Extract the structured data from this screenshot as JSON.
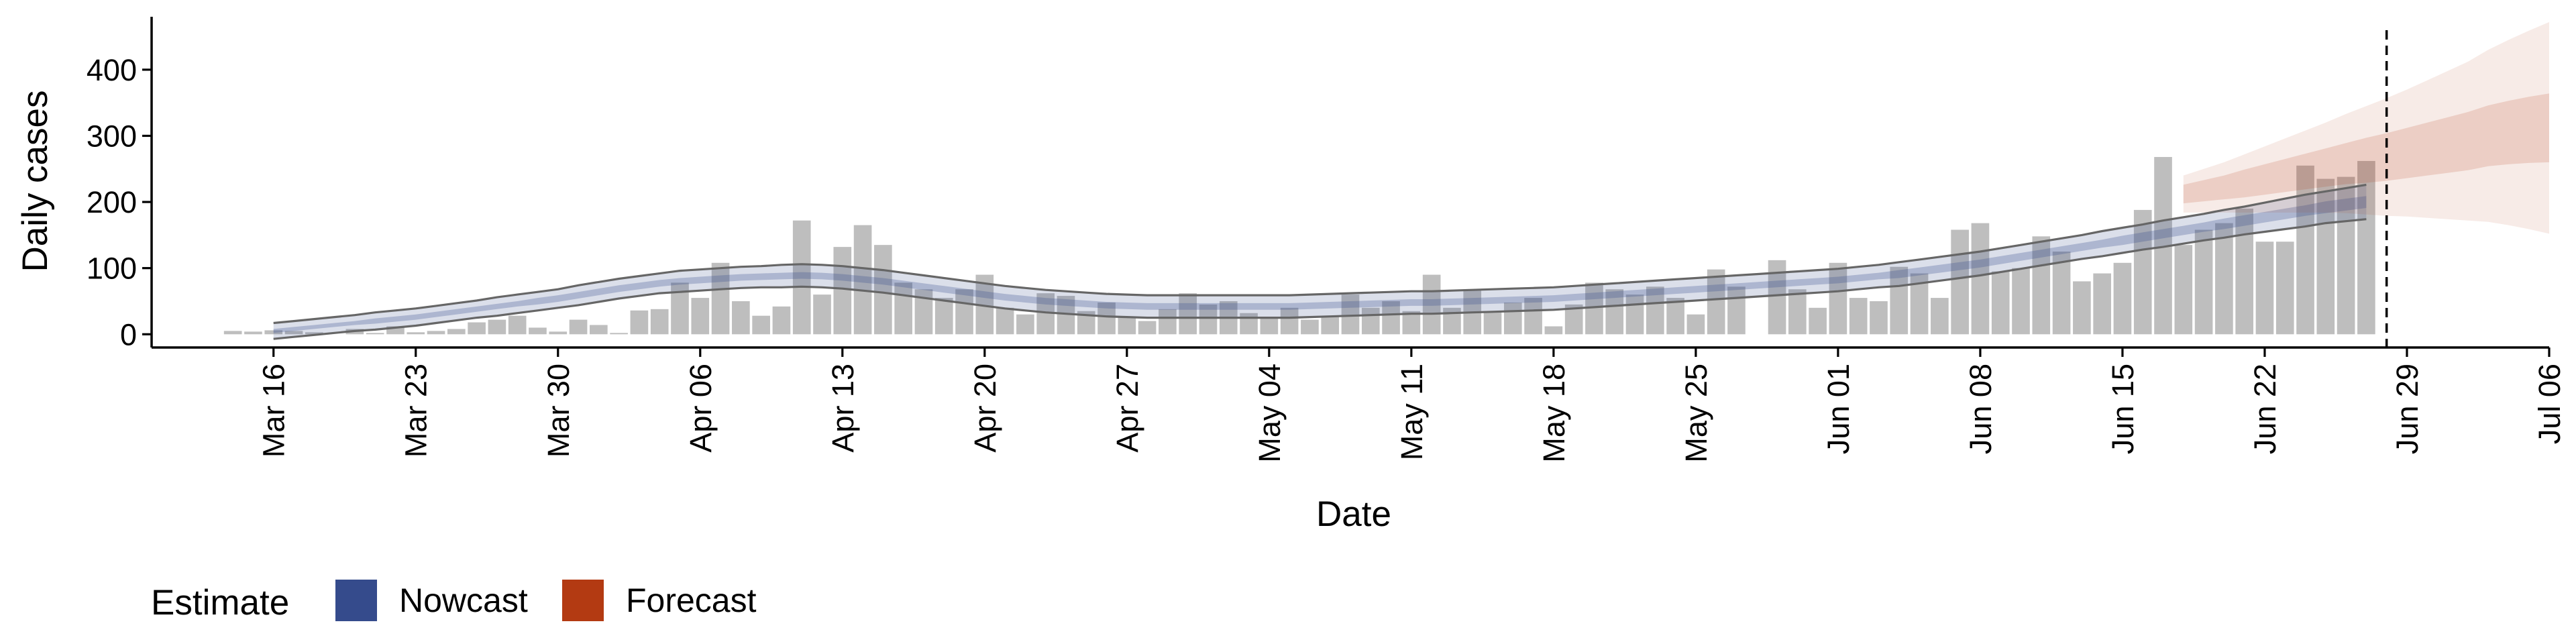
{
  "chart_data": {
    "type": "bar",
    "xlabel": "Date",
    "ylabel": "Daily cases",
    "x_start_date": "2020-03-14",
    "xlim": [
      "2020-03-10",
      "2020-07-06"
    ],
    "ylim": [
      -20,
      480
    ],
    "y_ticks": [
      0,
      100,
      200,
      300,
      400
    ],
    "x_ticks": [
      {
        "date": "2020-03-16",
        "label": "Mar 16"
      },
      {
        "date": "2020-03-23",
        "label": "Mar 23"
      },
      {
        "date": "2020-03-30",
        "label": "Mar 30"
      },
      {
        "date": "2020-04-06",
        "label": "Apr 06"
      },
      {
        "date": "2020-04-13",
        "label": "Apr 13"
      },
      {
        "date": "2020-04-20",
        "label": "Apr 20"
      },
      {
        "date": "2020-04-27",
        "label": "Apr 27"
      },
      {
        "date": "2020-05-04",
        "label": "May 04"
      },
      {
        "date": "2020-05-11",
        "label": "May 11"
      },
      {
        "date": "2020-05-18",
        "label": "May 18"
      },
      {
        "date": "2020-05-25",
        "label": "May 25"
      },
      {
        "date": "2020-06-01",
        "label": "Jun 01"
      },
      {
        "date": "2020-06-08",
        "label": "Jun 08"
      },
      {
        "date": "2020-06-15",
        "label": "Jun 15"
      },
      {
        "date": "2020-06-22",
        "label": "Jun 22"
      },
      {
        "date": "2020-06-29",
        "label": "Jun 29"
      },
      {
        "date": "2020-07-06",
        "label": "Jul 06"
      }
    ],
    "reported_cases": [
      5,
      4,
      6,
      5,
      3,
      0,
      8,
      2,
      12,
      3,
      5,
      8,
      18,
      22,
      28,
      10,
      4,
      22,
      14,
      2,
      36,
      38,
      78,
      55,
      108,
      50,
      28,
      42,
      172,
      60,
      132,
      165,
      135,
      78,
      68,
      55,
      68,
      90,
      40,
      30,
      62,
      58,
      35,
      48,
      25,
      20,
      38,
      62,
      45,
      50,
      32,
      25,
      40,
      22,
      28,
      60,
      40,
      50,
      35,
      90,
      40,
      68,
      35,
      48,
      55,
      12,
      45,
      78,
      68,
      60,
      72,
      55,
      30,
      98,
      72,
      0,
      112,
      68,
      40,
      108,
      55,
      50,
      102,
      92,
      55,
      158,
      168,
      95,
      100,
      148,
      125,
      80,
      92,
      108,
      188,
      268,
      135,
      158,
      168,
      190,
      140,
      140,
      255,
      235,
      238,
      262
    ],
    "bar_color": "#b3b3b3",
    "nowcast": {
      "start_date": "2020-03-16",
      "median": [
        5,
        8,
        11,
        14,
        17,
        20,
        23,
        26,
        30,
        34,
        38,
        42,
        46,
        50,
        54,
        59,
        64,
        69,
        73,
        77,
        80,
        82,
        84,
        86,
        87,
        88,
        89,
        88,
        86,
        83,
        80,
        76,
        72,
        68,
        64,
        60,
        56,
        53,
        50,
        48,
        46,
        44,
        43,
        42,
        42,
        42,
        42,
        42,
        42,
        42,
        42,
        43,
        44,
        45,
        46,
        47,
        48,
        48,
        49,
        50,
        51,
        52,
        53,
        54,
        56,
        58,
        60,
        62,
        64,
        66,
        68,
        70,
        72,
        74,
        76,
        78,
        80,
        82,
        85,
        88,
        91,
        95,
        99,
        103,
        107,
        112,
        117,
        122,
        127,
        132,
        137,
        142,
        147,
        152,
        157,
        162,
        167,
        172,
        177,
        182,
        187,
        192,
        196,
        200
      ],
      "inner_halfwidth": [
        3,
        3,
        3,
        3,
        3,
        4,
        4,
        4,
        4,
        4,
        4,
        4,
        4,
        5,
        5,
        5,
        5,
        5,
        5,
        5,
        5,
        5,
        5,
        5,
        5,
        5,
        5,
        5,
        5,
        5,
        5,
        5,
        5,
        5,
        5,
        5,
        5,
        5,
        5,
        5,
        5,
        5,
        5,
        5,
        5,
        5,
        5,
        5,
        5,
        5,
        5,
        5,
        5,
        5,
        5,
        5,
        5,
        5,
        5,
        5,
        5,
        5,
        5,
        5,
        5,
        5,
        5,
        5,
        5,
        5,
        5,
        5,
        5,
        5,
        5,
        5,
        5,
        5,
        5,
        5,
        6,
        6,
        6,
        6,
        6,
        6,
        6,
        6,
        6,
        6,
        6,
        7,
        7,
        7,
        7,
        7,
        8,
        8,
        8,
        8,
        8,
        9,
        9,
        9
      ],
      "outer_halfwidth": [
        12,
        12,
        12,
        12,
        12,
        13,
        13,
        13,
        13,
        13,
        13,
        14,
        14,
        14,
        14,
        15,
        15,
        15,
        15,
        15,
        16,
        16,
        16,
        16,
        16,
        17,
        17,
        17,
        17,
        17,
        17,
        17,
        17,
        17,
        17,
        17,
        17,
        17,
        17,
        17,
        17,
        17,
        17,
        17,
        17,
        17,
        17,
        17,
        17,
        17,
        17,
        17,
        17,
        17,
        17,
        17,
        17,
        17,
        17,
        17,
        17,
        17,
        17,
        17,
        17,
        17,
        17,
        17,
        17,
        17,
        17,
        17,
        17,
        17,
        17,
        17,
        17,
        17,
        17,
        17,
        18,
        18,
        18,
        18,
        18,
        18,
        18,
        18,
        18,
        18,
        19,
        19,
        19,
        20,
        20,
        20,
        21,
        21,
        22,
        23,
        24,
        24,
        25,
        26
      ]
    },
    "forecast": {
      "start_date": "2020-06-18",
      "median": [
        212,
        217,
        222,
        228,
        234,
        240,
        246,
        252,
        258,
        263,
        268,
        274,
        280,
        286,
        292,
        300,
        305,
        309,
        312
      ],
      "inner_halfwidth": [
        14,
        16,
        18,
        21,
        23,
        25,
        27,
        29,
        31,
        34,
        36,
        38,
        40,
        42,
        44,
        46,
        48,
        50,
        52
      ],
      "outer_halfwidth": [
        28,
        33,
        38,
        44,
        50,
        56,
        62,
        68,
        75,
        82,
        89,
        96,
        104,
        112,
        120,
        130,
        140,
        150,
        160
      ]
    },
    "vline_date": "2020-06-28",
    "legend": {
      "title": "Estimate",
      "position": "bottom-left",
      "items": [
        {
          "label": "Nowcast",
          "color": "#354B8C"
        },
        {
          "label": "Forecast",
          "color": "#B33A12"
        }
      ]
    }
  }
}
